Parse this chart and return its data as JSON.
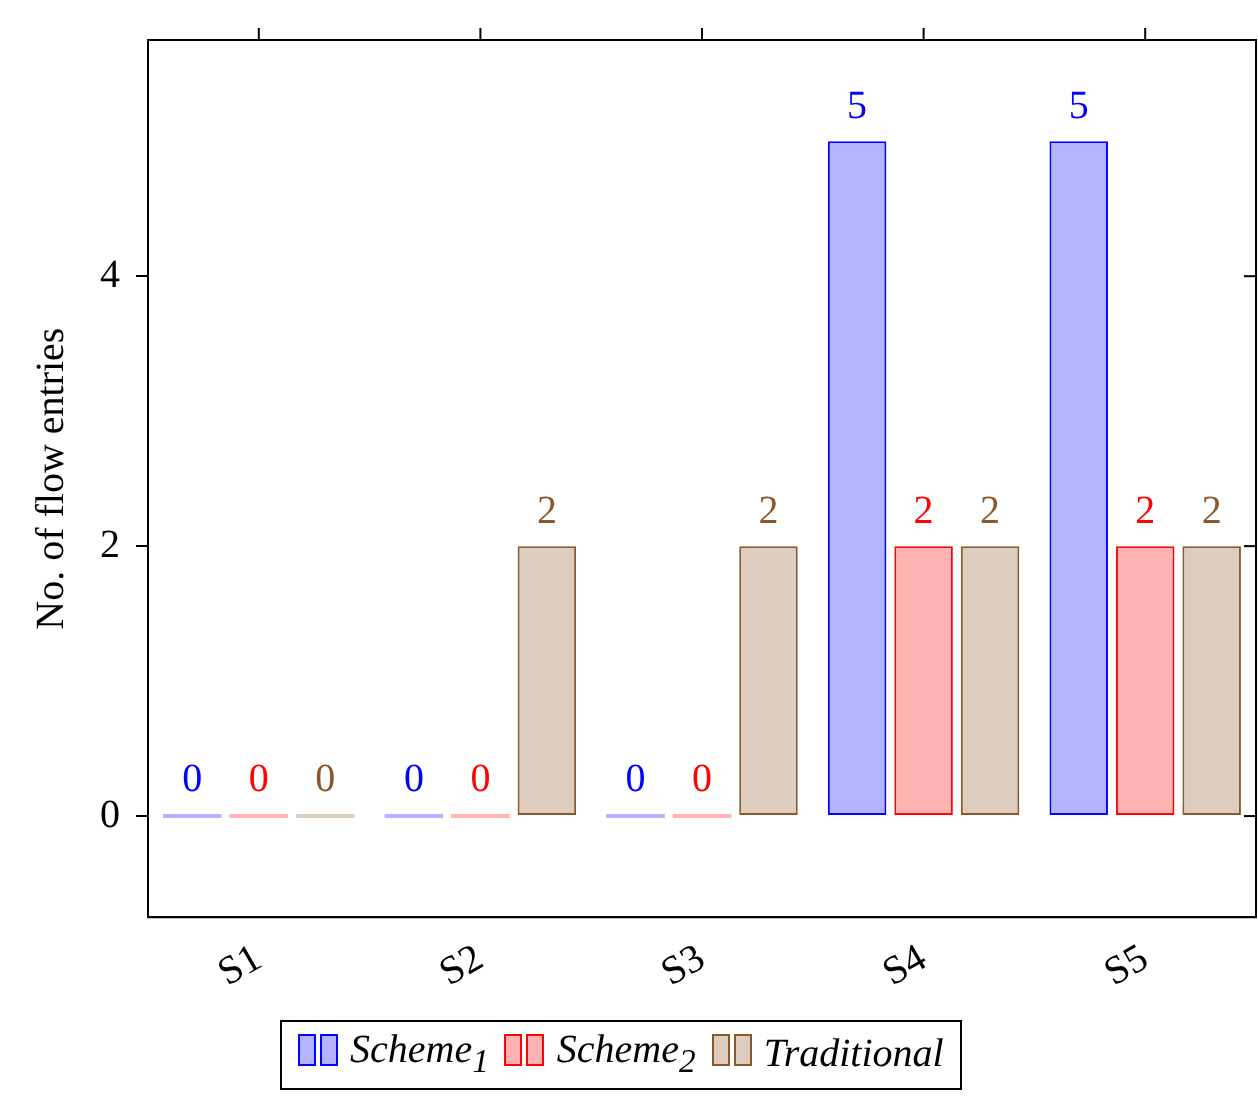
{
  "chart_data": {
    "type": "bar",
    "ylabel": "No. of flow entries",
    "categories": [
      "S1",
      "S2",
      "S3",
      "S4",
      "S5"
    ],
    "series": [
      {
        "name": "Scheme$_{1}$",
        "color": "#b3b3ff",
        "values": [
          0,
          0,
          0,
          5,
          5
        ]
      },
      {
        "name": "Scheme$_{2}$",
        "color": "#ffb3b3",
        "values": [
          0,
          0,
          0,
          2,
          2
        ]
      },
      {
        "name": "Traditional",
        "color": "#dccdbf",
        "values": [
          0,
          2,
          2,
          2,
          2
        ]
      }
    ],
    "ylim": [
      -0.75,
      5.75
    ],
    "yticks": [
      0,
      2,
      4
    ],
    "grid": false,
    "legend": "bottom",
    "data_labels": true
  }
}
